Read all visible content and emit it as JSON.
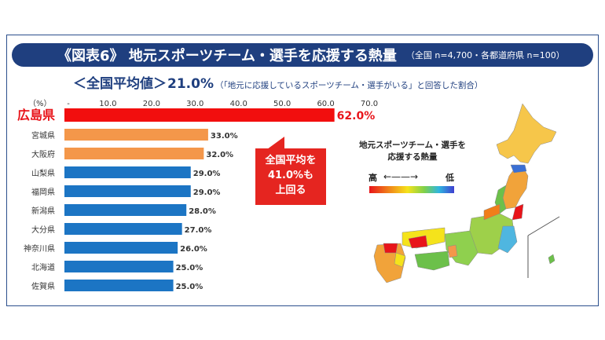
{
  "title": {
    "main": "《図表6》 地元スポーツチーム・選手を応援する熱量",
    "sub": "（全国 n=4,700・各都道府県 n=100）"
  },
  "subtitle": {
    "lead": "＜全国平均値＞",
    "avg": "21.0%",
    "note": "（「地元に応援しているスポーツチーム・選手がいる」と回答した割合）"
  },
  "callout": {
    "line1": "全国平均を",
    "line2": "41.0%も",
    "line3": "上回る"
  },
  "legend": {
    "title_line1": "地元スポーツチーム・選手を",
    "title_line2": "応援する熱量",
    "high": "高",
    "low": "低",
    "arrow": "←——→"
  },
  "colors": {
    "top": "#f20e0e",
    "second": "#f4974a",
    "rest": "#1c75c4",
    "accent": "#1f3f7f"
  },
  "chart_data": {
    "type": "bar",
    "orientation": "horizontal",
    "unit_label": "（%）",
    "categories": [
      "広島県",
      "宮城県",
      "大阪府",
      "山梨県",
      "福岡県",
      "新潟県",
      "大分県",
      "神奈川県",
      "北海道",
      "佐賀県"
    ],
    "values": [
      62.0,
      33.0,
      32.0,
      29.0,
      29.0,
      28.0,
      27.0,
      26.0,
      25.0,
      25.0
    ],
    "value_labels": [
      "62.0%",
      "33.0%",
      "32.0%",
      "29.0%",
      "29.0%",
      "28.0%",
      "27.0%",
      "26.0%",
      "25.0%",
      "25.0%"
    ],
    "xticks": [
      "-",
      "10.0",
      "20.0",
      "30.0",
      "40.0",
      "50.0",
      "60.0",
      "70.0"
    ],
    "xlim": [
      0,
      70
    ],
    "color_groups": [
      "top",
      "second",
      "second",
      "rest",
      "rest",
      "rest",
      "rest",
      "rest",
      "rest",
      "rest"
    ]
  }
}
